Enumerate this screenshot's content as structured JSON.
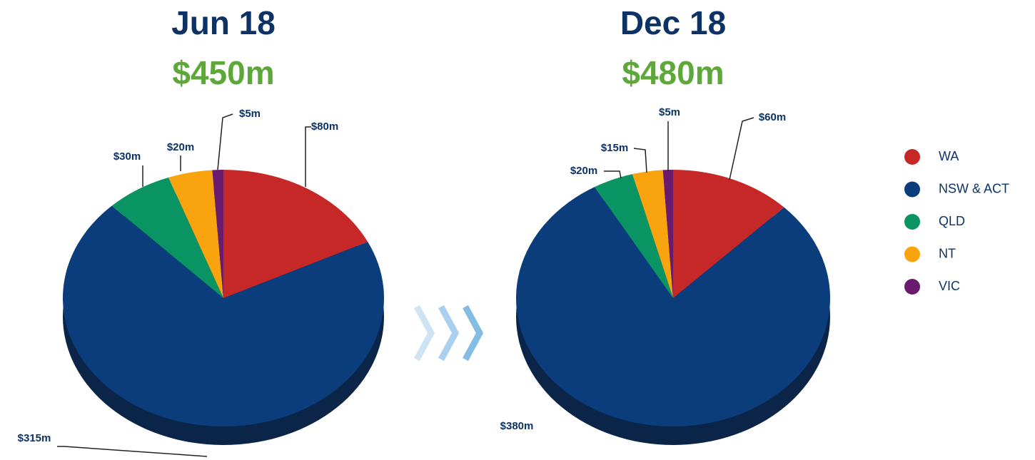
{
  "chart_data": [
    {
      "type": "pie",
      "title": "Jun 18",
      "subtitle": "$450m",
      "categories": [
        "WA",
        "NSW & ACT",
        "QLD",
        "NT",
        "VIC"
      ],
      "values": [
        80,
        315,
        30,
        20,
        5
      ],
      "value_labels": [
        "$80m",
        "$315m",
        "$30m",
        "$20m",
        "$5m"
      ],
      "colors": [
        "#c62828",
        "#0b3d7c",
        "#0a9464",
        "#f9a30f",
        "#6a1b6e"
      ]
    },
    {
      "type": "pie",
      "title": "Dec 18",
      "subtitle": "$480m",
      "categories": [
        "WA",
        "NSW & ACT",
        "QLD",
        "NT",
        "VIC"
      ],
      "values": [
        60,
        380,
        20,
        15,
        5
      ],
      "value_labels": [
        "$60m",
        "$380m",
        "$20m",
        "$15m",
        "$5m"
      ],
      "colors": [
        "#c62828",
        "#0b3d7c",
        "#0a9464",
        "#f9a30f",
        "#6a1b6e"
      ]
    }
  ]
}
